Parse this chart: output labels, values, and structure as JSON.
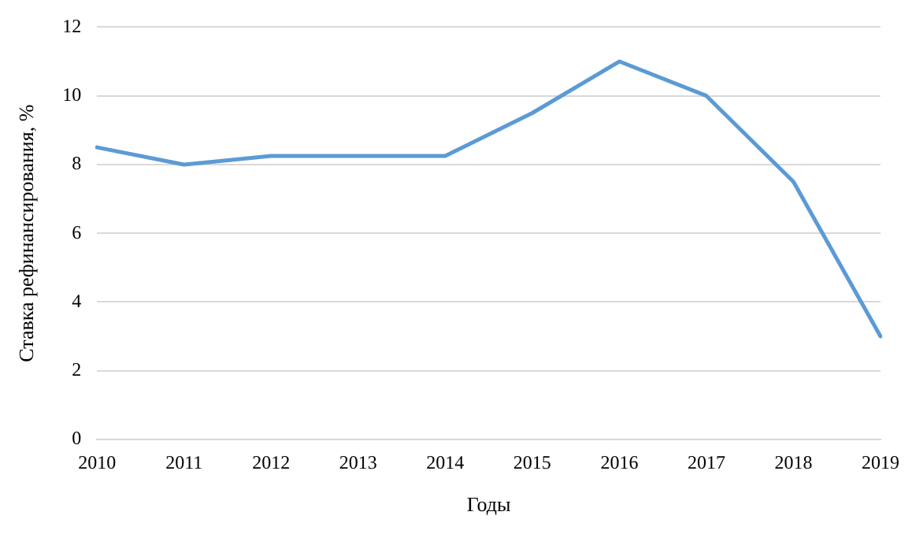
{
  "chart_data": {
    "type": "line",
    "xlabel": "Годы",
    "ylabel": "Ставка рефинансирования, %",
    "categories": [
      "2010",
      "2011",
      "2012",
      "2013",
      "2014",
      "2015",
      "2016",
      "2017",
      "2018",
      "2019"
    ],
    "series": [
      {
        "color": "#5b9bd5",
        "values": [
          8.5,
          8,
          8.25,
          8.25,
          8.25,
          9.5,
          11,
          10,
          7.5,
          3
        ]
      }
    ],
    "ylim": [
      0,
      12
    ],
    "yticks": [
      0,
      2,
      4,
      6,
      8,
      10,
      12
    ],
    "grid": "y",
    "legend": false,
    "marker": "none",
    "line_style": "solid"
  }
}
